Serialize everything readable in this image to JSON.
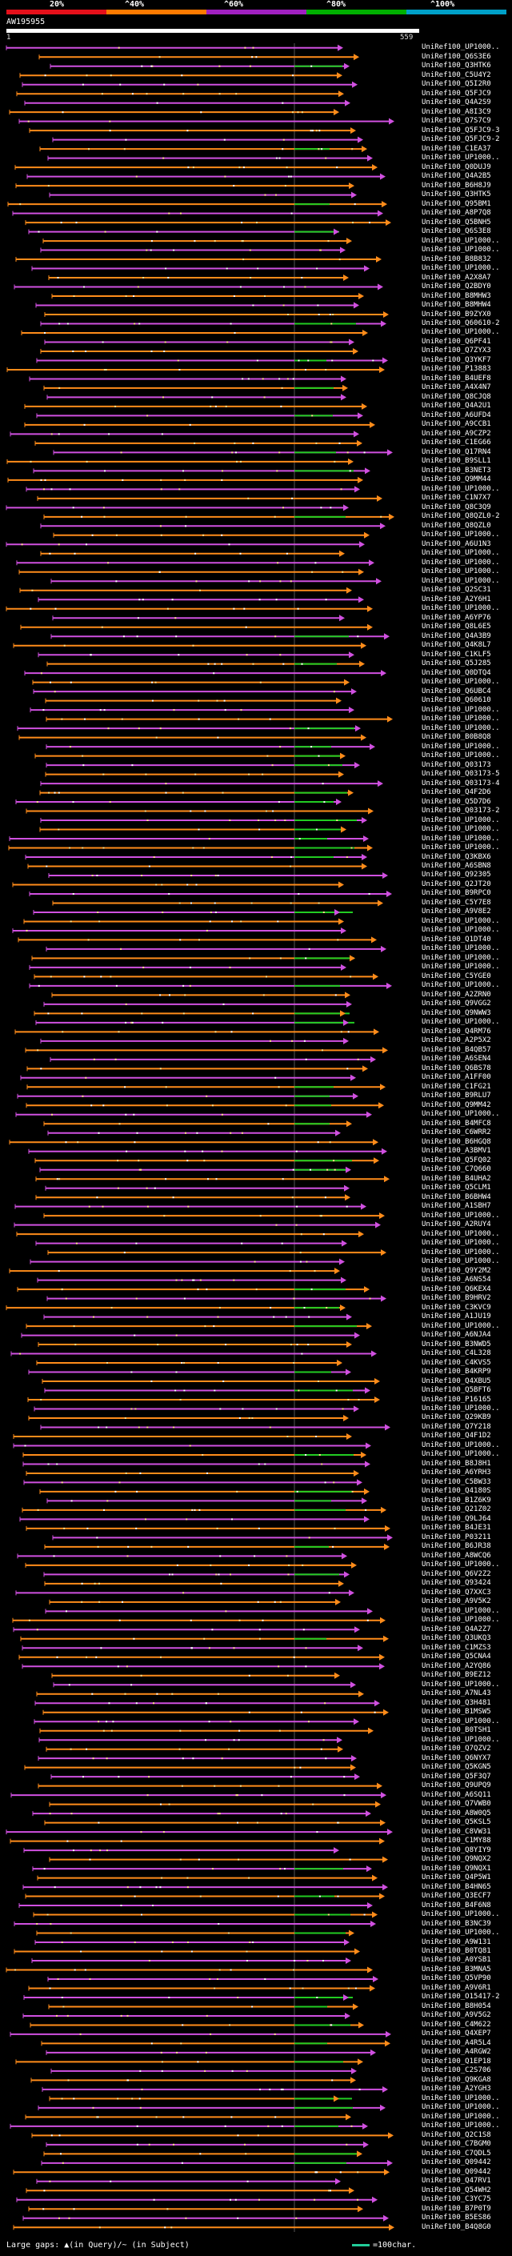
{
  "query": {
    "name": "AW195955",
    "start": "1",
    "end": "559",
    "length": 559
  },
  "scale": {
    "labels": [
      "20%",
      "^40%",
      "^60%",
      "^80%",
      "^100%"
    ],
    "colors": [
      "#e5101a",
      "#ff7a00",
      "#a020c0",
      "#00b000",
      "#00a0c8"
    ]
  },
  "colors": {
    "orange": "#ff8c1a",
    "magenta": "#d050e0",
    "green": "#22cc22",
    "background": "#000000"
  },
  "legend": {
    "gaps": "Large gaps: ▲(in Query)/~ (in Subject)",
    "scale": "=100char."
  },
  "hits": [
    {
      "label": "UniRef100_UP1000..",
      "color": "magenta"
    },
    {
      "label": "UniRef100_Q6S3E6",
      "color": "orange"
    },
    {
      "label": "UniRef100_Q3HTK6",
      "color": "magenta"
    },
    {
      "label": "UniRef100_C5U4Y2",
      "color": "orange"
    },
    {
      "label": "UniRef100_Q5I2R0",
      "color": "magenta"
    },
    {
      "label": "UniRef100_Q5FJC9",
      "color": "orange"
    },
    {
      "label": "UniRef100_Q4A2S9",
      "color": "magenta"
    },
    {
      "label": "UniRef100_A8I3C9",
      "color": "orange"
    },
    {
      "label": "UniRef100_Q7S7C9",
      "color": "magenta"
    },
    {
      "label": "UniRef100_Q5FJC9-3",
      "color": "orange"
    },
    {
      "label": "UniRef100_Q5FJC9-2",
      "color": "magenta"
    },
    {
      "label": "UniRef100_C1EA37",
      "color": "orange"
    },
    {
      "label": "UniRef100_UP1000..",
      "color": "magenta"
    },
    {
      "label": "UniRef100_Q0DUJ9",
      "color": "orange"
    },
    {
      "label": "UniRef100_Q4A2B5",
      "color": "magenta"
    },
    {
      "label": "UniRef100_B6H8J9",
      "color": "orange"
    },
    {
      "label": "UniRef100_Q3HTK5",
      "color": "magenta"
    },
    {
      "label": "UniRef100_Q95BM1",
      "color": "orange"
    },
    {
      "label": "UniRef100_A8P7Q8",
      "color": "magenta"
    },
    {
      "label": "UniRef100_Q5BNH5",
      "color": "orange"
    },
    {
      "label": "UniRef100_Q6S3E8",
      "color": "magenta"
    },
    {
      "label": "UniRef100_UP1000..",
      "color": "orange"
    },
    {
      "label": "UniRef100_UP1000..",
      "color": "magenta"
    },
    {
      "label": "UniRef100_B8B832",
      "color": "orange"
    },
    {
      "label": "UniRef100_UP1000..",
      "color": "magenta"
    },
    {
      "label": "UniRef100_A2X8A7",
      "color": "orange"
    },
    {
      "label": "UniRef100_Q2BDY0",
      "color": "magenta"
    },
    {
      "label": "UniRef100_B8MHW3",
      "color": "orange"
    },
    {
      "label": "UniRef100_B8MHW4",
      "color": "magenta"
    },
    {
      "label": "UniRef100_B9ZYX0",
      "color": "orange"
    },
    {
      "label": "UniRef100_Q60610-2",
      "color": "magenta"
    },
    {
      "label": "UniRef100_UP1000..",
      "color": "orange"
    },
    {
      "label": "UniRef100_Q6PF41",
      "color": "magenta"
    },
    {
      "label": "UniRef100_Q7ZYX3",
      "color": "orange"
    },
    {
      "label": "UniRef100_Q3YKF7",
      "color": "magenta"
    },
    {
      "label": "UniRef100_P13883",
      "color": "orange"
    },
    {
      "label": "UniRef100_B4UEF8",
      "color": "magenta"
    },
    {
      "label": "UniRef100_A4X4N7",
      "color": "orange"
    },
    {
      "label": "UniRef100_Q8CJQ8",
      "color": "magenta"
    },
    {
      "label": "UniRef100_Q4A2U1",
      "color": "orange"
    },
    {
      "label": "UniRef100_A6UFD4",
      "color": "magenta"
    },
    {
      "label": "UniRef100_A9CCB1",
      "color": "orange"
    },
    {
      "label": "UniRef100_A9CZP2",
      "color": "magenta"
    },
    {
      "label": "UniRef100_C1EG66",
      "color": "orange"
    },
    {
      "label": "UniRef100_Q17RN4",
      "color": "magenta"
    },
    {
      "label": "UniRef100_B9SLL1",
      "color": "orange"
    },
    {
      "label": "UniRef100_B3NET3",
      "color": "magenta"
    },
    {
      "label": "UniRef100_Q9MM44",
      "color": "orange"
    },
    {
      "label": "UniRef100_UP1000..",
      "color": "magenta"
    },
    {
      "label": "UniRef100_C1N7X7",
      "color": "orange"
    },
    {
      "label": "UniRef100_Q8C3Q9",
      "color": "magenta"
    },
    {
      "label": "UniRef100_Q8QZL0-2",
      "color": "orange"
    },
    {
      "label": "UniRef100_Q8QZL0",
      "color": "magenta"
    },
    {
      "label": "UniRef100_UP1000..",
      "color": "orange"
    },
    {
      "label": "UniRef100_A6U1N3",
      "color": "magenta"
    },
    {
      "label": "UniRef100_UP1000..",
      "color": "orange"
    },
    {
      "label": "UniRef100_UP1000..",
      "color": "magenta"
    },
    {
      "label": "UniRef100_UP1000..",
      "color": "orange"
    },
    {
      "label": "UniRef100_UP1000..",
      "color": "magenta"
    },
    {
      "label": "UniRef100_Q2SC31",
      "color": "orange"
    },
    {
      "label": "UniRef100_A2Y6H1",
      "color": "magenta"
    },
    {
      "label": "UniRef100_UP1000..",
      "color": "orange"
    },
    {
      "label": "UniRef100_A6YP76",
      "color": "magenta"
    },
    {
      "label": "UniRef100_Q8L6E5",
      "color": "orange"
    },
    {
      "label": "UniRef100_Q4A3B9",
      "color": "magenta"
    },
    {
      "label": "UniRef100_Q4K8L7",
      "color": "orange"
    },
    {
      "label": "UniRef100_C1KLF5",
      "color": "magenta"
    },
    {
      "label": "UniRef100_Q5J285",
      "color": "orange"
    },
    {
      "label": "UniRef100_Q0DTQ4",
      "color": "magenta"
    },
    {
      "label": "UniRef100_UP1000..",
      "color": "orange"
    },
    {
      "label": "UniRef100_Q6UBC4",
      "color": "magenta"
    },
    {
      "label": "UniRef100_Q60610",
      "color": "orange"
    },
    {
      "label": "UniRef100_UP1000..",
      "color": "magenta"
    },
    {
      "label": "UniRef100_UP1000..",
      "color": "orange"
    },
    {
      "label": "UniRef100_UP1000..",
      "color": "magenta"
    },
    {
      "label": "UniRef100_B0B8Q8",
      "color": "orange"
    },
    {
      "label": "UniRef100_UP1000..",
      "color": "magenta"
    },
    {
      "label": "UniRef100_UP1000..",
      "color": "orange"
    },
    {
      "label": "UniRef100_Q03173",
      "color": "magenta"
    },
    {
      "label": "UniRef100_Q03173-5",
      "color": "orange"
    },
    {
      "label": "UniRef100_Q03173-4",
      "color": "magenta"
    },
    {
      "label": "UniRef100_Q4F2D6",
      "color": "orange"
    },
    {
      "label": "UniRef100_Q5D7D6",
      "color": "magenta"
    },
    {
      "label": "UniRef100_Q03173-2",
      "color": "orange"
    },
    {
      "label": "UniRef100_UP1000..",
      "color": "magenta"
    },
    {
      "label": "UniRef100_UP1000..",
      "color": "orange"
    },
    {
      "label": "UniRef100_UP1000..",
      "color": "magenta"
    },
    {
      "label": "UniRef100_UP1000..",
      "color": "orange"
    },
    {
      "label": "UniRef100_Q3KBX6",
      "color": "magenta"
    },
    {
      "label": "UniRef100_A6SBN8",
      "color": "orange"
    },
    {
      "label": "UniRef100_Q92305",
      "color": "magenta"
    },
    {
      "label": "UniRef100_Q2JT20",
      "color": "orange"
    },
    {
      "label": "UniRef100_B9RPC0",
      "color": "magenta"
    },
    {
      "label": "UniRef100_C5Y7E8",
      "color": "orange"
    },
    {
      "label": "UniRef100_A9V8E2",
      "color": "magenta"
    },
    {
      "label": "UniRef100_UP1000..",
      "color": "orange"
    },
    {
      "label": "UniRef100_UP1000..",
      "color": "magenta"
    },
    {
      "label": "UniRef100_Q1DT40",
      "color": "orange"
    },
    {
      "label": "UniRef100_UP1000..",
      "color": "magenta"
    },
    {
      "label": "UniRef100_UP1000..",
      "color": "orange"
    },
    {
      "label": "UniRef100_UP1000..",
      "color": "magenta"
    },
    {
      "label": "UniRef100_C5YGE0",
      "color": "orange"
    },
    {
      "label": "UniRef100_UP1000..",
      "color": "magenta"
    },
    {
      "label": "UniRef100_A2ZRN0",
      "color": "orange"
    },
    {
      "label": "UniRef100_Q9VGG2",
      "color": "magenta"
    },
    {
      "label": "UniRef100_Q9NWW3",
      "color": "orange"
    },
    {
      "label": "UniRef100_UP1000..",
      "color": "magenta"
    },
    {
      "label": "UniRef100_Q4RM76",
      "color": "orange"
    },
    {
      "label": "UniRef100_A2P5X2",
      "color": "magenta"
    },
    {
      "label": "UniRef100_B4QB57",
      "color": "orange"
    },
    {
      "label": "UniRef100_A6SEN4",
      "color": "magenta"
    },
    {
      "label": "UniRef100_Q6BS78",
      "color": "orange"
    },
    {
      "label": "UniRef100_A1FF00",
      "color": "magenta"
    },
    {
      "label": "UniRef100_C1FG21",
      "color": "orange"
    },
    {
      "label": "UniRef100_B9RLU7",
      "color": "magenta"
    },
    {
      "label": "UniRef100_Q9MM42",
      "color": "orange"
    },
    {
      "label": "UniRef100_UP1000..",
      "color": "magenta"
    },
    {
      "label": "UniRef100_B4MFC8",
      "color": "orange"
    },
    {
      "label": "UniRef100_C6WRR2",
      "color": "magenta"
    },
    {
      "label": "UniRef100_B6HGQ8",
      "color": "orange"
    },
    {
      "label": "UniRef100_A3BMV1",
      "color": "magenta"
    },
    {
      "label": "UniRef100_Q5FQ02",
      "color": "orange"
    },
    {
      "label": "UniRef100_C7Q660",
      "color": "magenta"
    },
    {
      "label": "UniRef100_B4UHA2",
      "color": "orange"
    },
    {
      "label": "UniRef100_Q5CLM1",
      "color": "magenta"
    },
    {
      "label": "UniRef100_B6BHW4",
      "color": "orange"
    },
    {
      "label": "UniRef100_A1SBH7",
      "color": "magenta"
    },
    {
      "label": "UniRef100_UP1000..",
      "color": "orange"
    },
    {
      "label": "UniRef100_A2RUY4",
      "color": "magenta"
    },
    {
      "label": "UniRef100_UP1000..",
      "color": "orange"
    },
    {
      "label": "UniRef100_UP1000..",
      "color": "magenta"
    },
    {
      "label": "UniRef100_UP1000..",
      "color": "orange"
    },
    {
      "label": "UniRef100_UP1000..",
      "color": "magenta"
    },
    {
      "label": "UniRef100_Q9Y2M2",
      "color": "orange"
    },
    {
      "label": "UniRef100_A6NS54",
      "color": "magenta"
    },
    {
      "label": "UniRef100_Q6KEX4",
      "color": "orange"
    },
    {
      "label": "UniRef100_B9HRV2",
      "color": "magenta"
    },
    {
      "label": "UniRef100_C3KVC9",
      "color": "orange"
    },
    {
      "label": "UniRef100_A1JU19",
      "color": "magenta"
    },
    {
      "label": "UniRef100_UP1000..",
      "color": "orange"
    },
    {
      "label": "UniRef100_A6NJA4",
      "color": "magenta"
    },
    {
      "label": "UniRef100_B3NWD5",
      "color": "orange"
    },
    {
      "label": "UniRef100_C4L328",
      "color": "magenta"
    },
    {
      "label": "UniRef100_C4KVS5",
      "color": "orange"
    },
    {
      "label": "UniRef100_B4KRP9",
      "color": "magenta"
    },
    {
      "label": "UniRef100_Q4XBU5",
      "color": "orange"
    },
    {
      "label": "UniRef100_Q5BFT6",
      "color": "magenta"
    },
    {
      "label": "UniRef100_P16165",
      "color": "orange"
    },
    {
      "label": "UniRef100_UP1000..",
      "color": "magenta"
    },
    {
      "label": "UniRef100_Q29KB9",
      "color": "orange"
    },
    {
      "label": "UniRef100_Q7Y218",
      "color": "magenta"
    },
    {
      "label": "UniRef100_Q4F1D2",
      "color": "orange"
    },
    {
      "label": "UniRef100_UP1000..",
      "color": "magenta"
    },
    {
      "label": "UniRef100_UP1000..",
      "color": "orange"
    },
    {
      "label": "UniRef100_B8J8H1",
      "color": "magenta"
    },
    {
      "label": "UniRef100_A6YRH3",
      "color": "orange"
    },
    {
      "label": "UniRef100_C5BW33",
      "color": "magenta"
    },
    {
      "label": "UniRef100_Q4180S",
      "color": "orange"
    },
    {
      "label": "UniRef100_B1Z6K9",
      "color": "magenta"
    },
    {
      "label": "UniRef100_Q21Z02",
      "color": "orange"
    },
    {
      "label": "UniRef100_Q9LJ64",
      "color": "magenta"
    },
    {
      "label": "UniRef100_B4JE31",
      "color": "orange"
    },
    {
      "label": "UniRef100_P03211",
      "color": "magenta"
    },
    {
      "label": "UniRef100_B6JR38",
      "color": "orange"
    },
    {
      "label": "UniRef100_A8WCQ6",
      "color": "magenta"
    },
    {
      "label": "UniRef100_UP1000..",
      "color": "orange"
    },
    {
      "label": "UniRef100_Q6V2Z2",
      "color": "magenta"
    },
    {
      "label": "UniRef100_Q93424",
      "color": "orange"
    },
    {
      "label": "UniRef100_Q7XXC3",
      "color": "magenta"
    },
    {
      "label": "UniRef100_A9V5K2",
      "color": "orange"
    },
    {
      "label": "UniRef100_UP1000..",
      "color": "magenta"
    },
    {
      "label": "UniRef100_UP1000..",
      "color": "orange"
    },
    {
      "label": "UniRef100_Q4A2Z7",
      "color": "magenta"
    },
    {
      "label": "UniRef100_Q3UKQ3",
      "color": "orange"
    },
    {
      "label": "UniRef100_C1MZS3",
      "color": "magenta"
    },
    {
      "label": "UniRef100_Q5CNA4",
      "color": "orange"
    },
    {
      "label": "UniRef100_A2YQ86",
      "color": "magenta"
    },
    {
      "label": "UniRef100_B9EZ12",
      "color": "orange"
    },
    {
      "label": "UniRef100_UP1000..",
      "color": "magenta"
    },
    {
      "label": "UniRef100_A7NL43",
      "color": "orange"
    },
    {
      "label": "UniRef100_Q3H481",
      "color": "magenta"
    },
    {
      "label": "UniRef100_B1MSW5",
      "color": "orange"
    },
    {
      "label": "UniRef100_UP1000..",
      "color": "magenta"
    },
    {
      "label": "UniRef100_B0TSH1",
      "color": "orange"
    },
    {
      "label": "UniRef100_UP1000..",
      "color": "magenta"
    },
    {
      "label": "UniRef100_Q7QZV2",
      "color": "orange"
    },
    {
      "label": "UniRef100_Q6NYX7",
      "color": "magenta"
    },
    {
      "label": "UniRef100_Q5KGN5",
      "color": "orange"
    },
    {
      "label": "UniRef100_Q5F3Q7",
      "color": "magenta"
    },
    {
      "label": "UniRef100_Q9UPQ9",
      "color": "orange"
    },
    {
      "label": "UniRef100_A6SQ11",
      "color": "magenta"
    },
    {
      "label": "UniRef100_Q7VWB0",
      "color": "orange"
    },
    {
      "label": "UniRef100_A8W0Q5",
      "color": "magenta"
    },
    {
      "label": "UniRef100_Q5KSL5",
      "color": "orange"
    },
    {
      "label": "UniRef100_C8VW31",
      "color": "magenta"
    },
    {
      "label": "UniRef100_C1MY88",
      "color": "orange"
    },
    {
      "label": "UniRef100_Q8YIY9",
      "color": "magenta"
    },
    {
      "label": "UniRef100_Q9NQX2",
      "color": "orange"
    },
    {
      "label": "UniRef100_Q9NQX1",
      "color": "magenta"
    },
    {
      "label": "UniRef100_Q4P5W1",
      "color": "orange"
    },
    {
      "label": "UniRef100_B4HN65",
      "color": "magenta"
    },
    {
      "label": "UniRef100_Q3ECF7",
      "color": "orange"
    },
    {
      "label": "UniRef100_B4F6N8",
      "color": "magenta"
    },
    {
      "label": "UniRef100_UP1000..",
      "color": "orange"
    },
    {
      "label": "UniRef100_B3NC39",
      "color": "magenta"
    },
    {
      "label": "UniRef100_UP1000..",
      "color": "orange"
    },
    {
      "label": "UniRef100_A9W131",
      "color": "magenta"
    },
    {
      "label": "UniRef100_B0TQ81",
      "color": "orange"
    },
    {
      "label": "UniRef100_A0YSB1",
      "color": "magenta"
    },
    {
      "label": "UniRef100_B3MNA5",
      "color": "orange"
    },
    {
      "label": "UniRef100_Q5VP90",
      "color": "magenta"
    },
    {
      "label": "UniRef100_A9V6R1",
      "color": "orange"
    },
    {
      "label": "UniRef100_O15417-2",
      "color": "magenta"
    },
    {
      "label": "UniRef100_B8H054",
      "color": "orange"
    },
    {
      "label": "UniRef100_A9V5G2",
      "color": "magenta"
    },
    {
      "label": "UniRef100_C4M622",
      "color": "orange"
    },
    {
      "label": "UniRef100_Q4XEP7",
      "color": "magenta"
    },
    {
      "label": "UniRef100_A4R5L4",
      "color": "orange"
    },
    {
      "label": "UniRef100_A4RGW2",
      "color": "magenta"
    },
    {
      "label": "UniRef100_Q1EP18",
      "color": "orange"
    },
    {
      "label": "UniRef100_C2S706",
      "color": "magenta"
    },
    {
      "label": "UniRef100_Q9KGA8",
      "color": "orange"
    },
    {
      "label": "UniRef100_A2YGH3",
      "color": "magenta"
    },
    {
      "label": "UniRef100_UP1000..",
      "color": "orange"
    },
    {
      "label": "UniRef100_UP1000..",
      "color": "magenta"
    },
    {
      "label": "UniRef100_UP1000..",
      "color": "orange"
    },
    {
      "label": "UniRef100_UP1000..",
      "color": "magenta"
    },
    {
      "label": "UniRef100_Q2C1S8",
      "color": "orange"
    },
    {
      "label": "UniRef100_C7BGM0",
      "color": "magenta"
    },
    {
      "label": "UniRef100_C7QDL5",
      "color": "orange"
    },
    {
      "label": "UniRef100_Q09442",
      "color": "magenta"
    },
    {
      "label": "UniRef100_Q09442",
      "color": "orange"
    },
    {
      "label": "UniRef100_Q47RV1",
      "color": "magenta"
    },
    {
      "label": "UniRef100_Q54WH2",
      "color": "orange"
    },
    {
      "label": "UniRef100_C3YC75",
      "color": "magenta"
    },
    {
      "label": "UniRef100_B7P0T9",
      "color": "orange"
    },
    {
      "label": "UniRef100_B5ES86",
      "color": "magenta"
    },
    {
      "label": "UniRef100_B4Q8G0",
      "color": "orange"
    }
  ]
}
